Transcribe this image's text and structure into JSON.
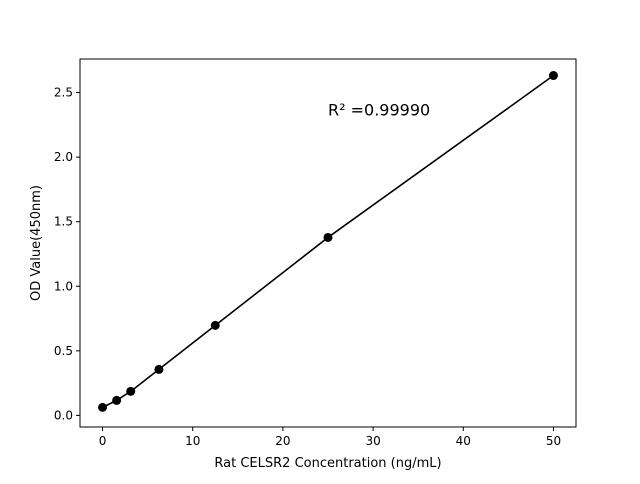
{
  "chart_data": {
    "type": "scatter",
    "title": "",
    "xlabel": "Rat CELSR2 Concentration (ng/mL)",
    "ylabel": "OD Value(450nm)",
    "xlim": [
      -2.5,
      52.5
    ],
    "ylim": [
      -0.09,
      2.76
    ],
    "xticks": [
      0,
      10,
      20,
      30,
      40,
      50
    ],
    "xtick_labels": [
      "0",
      "10",
      "20",
      "30",
      "40",
      "50"
    ],
    "yticks": [
      0.0,
      0.5,
      1.0,
      1.5,
      2.0,
      2.5
    ],
    "ytick_labels": [
      "0.0",
      "0.5",
      "1.0",
      "1.5",
      "2.0",
      "2.5"
    ],
    "grid": false,
    "points": {
      "x": [
        0,
        1.5625,
        3.125,
        6.25,
        12.5,
        25,
        50
      ],
      "y": [
        0.062,
        0.116,
        0.186,
        0.356,
        0.697,
        1.378,
        2.632
      ]
    },
    "fit_line": true,
    "annotation": {
      "text": "R² =0.99990",
      "x": 25,
      "y": 2.36
    },
    "colors": {
      "points": "#000000",
      "line": "#000000"
    }
  }
}
